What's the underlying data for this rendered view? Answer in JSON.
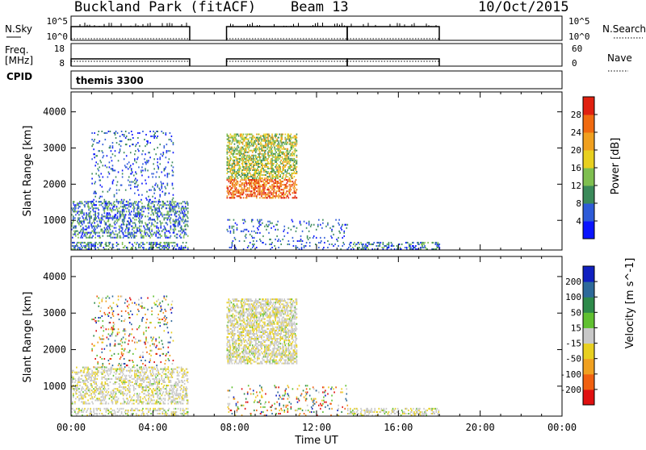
{
  "header": {
    "station": "Buckland Park (fitACF)",
    "beam": "Beam 13",
    "date": "10/Oct/2015"
  },
  "noise_panel": {
    "left_label": "N.Sky",
    "left_ticks": [
      "10^5",
      "10^0"
    ],
    "right_label": "N.Search",
    "right_ticks": [
      "10^5",
      "10^0"
    ]
  },
  "freq_panel": {
    "left_label_1": "Freq.",
    "left_label_2": "[MHz]",
    "left_ticks": [
      "18",
      "8"
    ],
    "right_label": "Nave",
    "right_ticks": [
      "60",
      "0"
    ]
  },
  "cpid": {
    "label": "CPID",
    "value": "themis 3300"
  },
  "chart_data": [
    {
      "type": "heatmap",
      "panel": "power",
      "ylabel": "Slant Range [km]",
      "xlabel": "",
      "ylim": [
        180,
        4550
      ],
      "xlim": [
        0,
        24
      ],
      "yticks": [
        1000,
        2000,
        3000,
        4000
      ],
      "colorbar": {
        "label": "Power [dB]",
        "ticks": [
          "4",
          "8",
          "12",
          "16",
          "20",
          "24",
          "28"
        ],
        "colors": [
          "#0a14ff",
          "#2e5bd8",
          "#3b8a5a",
          "#7fbf50",
          "#e8d020",
          "#f0a020",
          "#f06a10",
          "#e02010"
        ]
      },
      "echo_regions": [
        {
          "t_start": 0.0,
          "t_end": 5.7,
          "range_start": 180,
          "range_end": 400,
          "level": "low-mid"
        },
        {
          "t_start": 0.0,
          "t_end": 5.7,
          "range_start": 500,
          "range_end": 1500,
          "level": "low-mid"
        },
        {
          "t_start": 1.0,
          "t_end": 5.0,
          "range_start": 1500,
          "range_end": 3450,
          "level": "sparse"
        },
        {
          "t_start": 7.6,
          "t_end": 11.0,
          "range_start": 1600,
          "range_end": 3400,
          "level": "high"
        },
        {
          "t_start": 7.6,
          "t_end": 13.5,
          "range_start": 180,
          "range_end": 1000,
          "level": "sparse"
        },
        {
          "t_start": 13.5,
          "t_end": 18.0,
          "range_start": 180,
          "range_end": 400,
          "level": "low-mid"
        }
      ]
    },
    {
      "type": "heatmap",
      "panel": "velocity",
      "ylabel": "Slant Range [km]",
      "xlabel": "Time UT",
      "ylim": [
        180,
        4550
      ],
      "xlim": [
        0,
        24
      ],
      "yticks": [
        1000,
        2000,
        3000,
        4000
      ],
      "xticks": [
        "00:00",
        "04:00",
        "08:00",
        "12:00",
        "16:00",
        "20:00",
        "00:00"
      ],
      "colorbar": {
        "label": "Velocity [m s^-1]",
        "ticks": [
          "200",
          "100",
          "50",
          "15",
          "-15",
          "-50",
          "-100",
          "-200"
        ],
        "colors": [
          "#1020c0",
          "#2e6a9a",
          "#2e8a4a",
          "#60c030",
          "#c8c8c8",
          "#e8d020",
          "#f0a020",
          "#f06010",
          "#e01010"
        ]
      }
    }
  ]
}
